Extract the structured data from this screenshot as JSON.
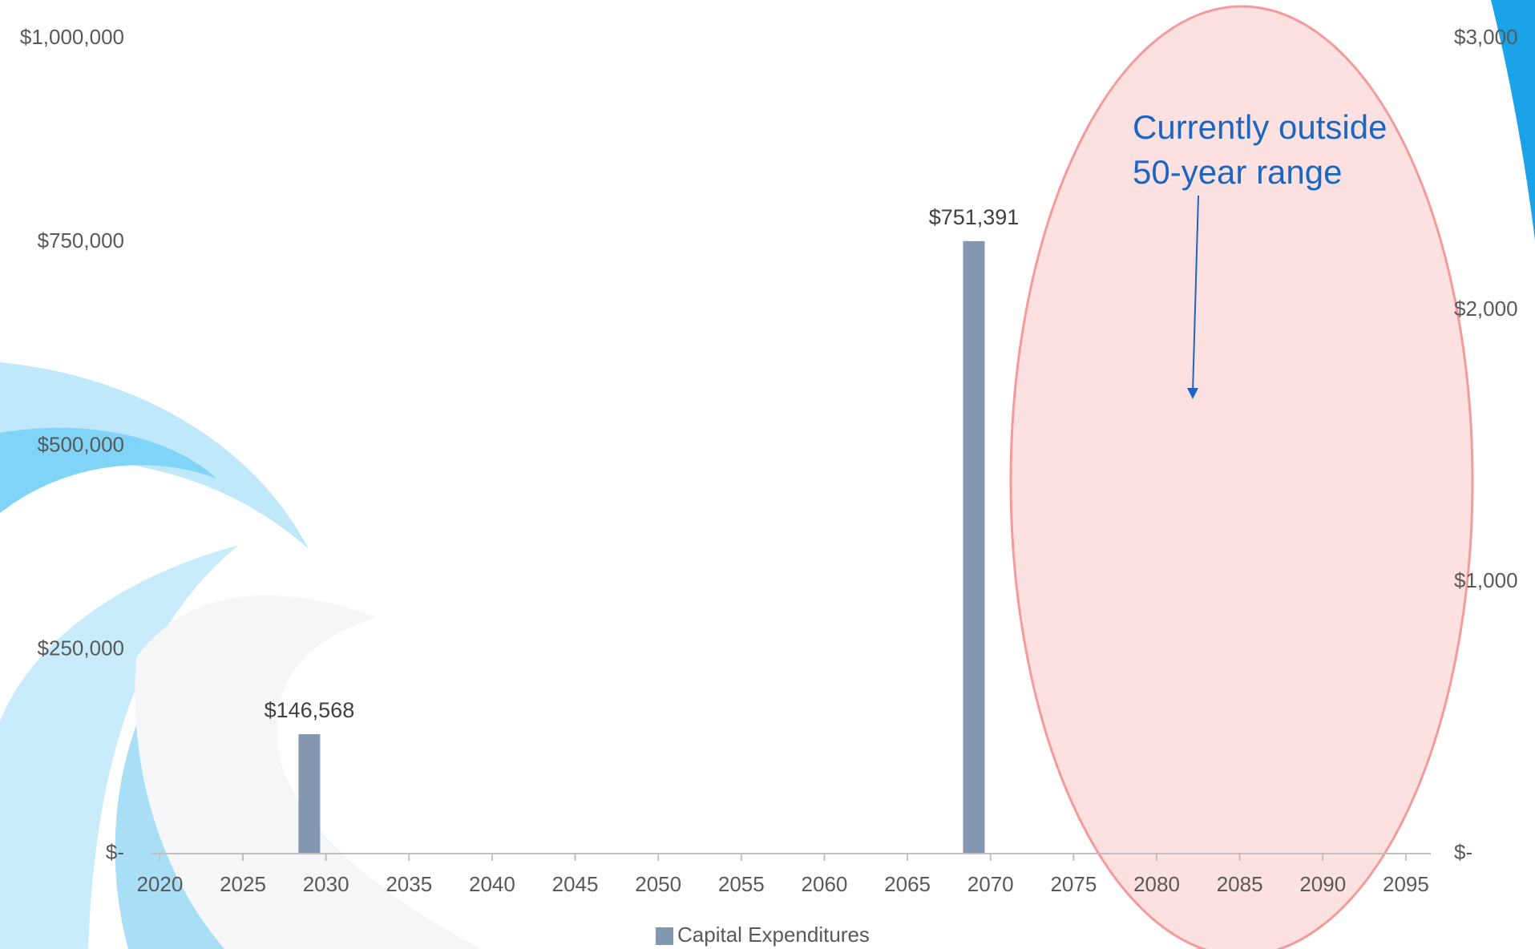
{
  "chart_data": {
    "type": "bar",
    "x": [
      2029,
      2069
    ],
    "xlim": [
      2019.5,
      2096.5
    ],
    "xticks": [
      2020,
      2025,
      2030,
      2035,
      2040,
      2045,
      2050,
      2055,
      2060,
      2065,
      2070,
      2075,
      2080,
      2085,
      2090,
      2095
    ],
    "series": [
      {
        "name": "Capital Expenditures",
        "color": "#8497b0",
        "values": [
          146568,
          751391
        ],
        "value_labels": [
          "$146,568",
          "$751,391"
        ]
      }
    ],
    "ylim": [
      0,
      1000000
    ],
    "yticks": [
      {
        "value": 0,
        "label": "$-"
      },
      {
        "value": 250000,
        "label": "$250,000"
      },
      {
        "value": 500000,
        "label": "$500,000"
      },
      {
        "value": 750000,
        "label": "$750,000"
      },
      {
        "value": 1000000,
        "label": "$1,000,000"
      }
    ],
    "y2lim": [
      0,
      3000
    ],
    "y2ticks": [
      {
        "value": 0,
        "label": "$-"
      },
      {
        "value": 1000,
        "label": "$1,000"
      },
      {
        "value": 2000,
        "label": "$2,000"
      },
      {
        "value": 3000,
        "label": "$3,000"
      }
    ],
    "grid": false,
    "legend": "bottom",
    "annotations": [
      "Currently outside",
      "50-year range"
    ]
  }
}
